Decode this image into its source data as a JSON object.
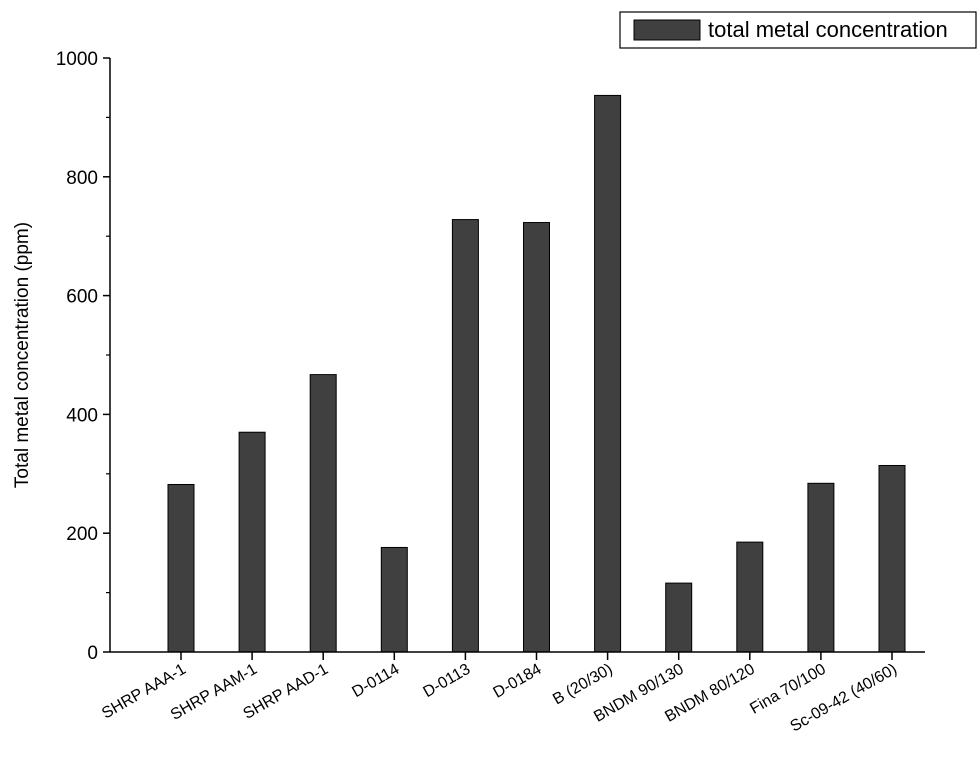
{
  "chart_data": {
    "type": "bar",
    "title": "",
    "xlabel": "",
    "ylabel": "Total metal concentration (ppm)",
    "ylim": [
      0,
      1000
    ],
    "yticks": [
      0,
      200,
      400,
      600,
      800,
      1000
    ],
    "grid": false,
    "legend_position": "top-right",
    "categories": [
      "SHRP AAA-1",
      "SHRP AAM-1",
      "SHRP AAD-1",
      "D-0114",
      "D-0113",
      "D-0184",
      "B (20/30)",
      "BNDM 90/130",
      "BNDM 80/120",
      "Fina 70/100",
      "Sc-09-42 (40/60)"
    ],
    "series": [
      {
        "name": "total metal concentration",
        "color": "#404040",
        "values": [
          282,
          370,
          467,
          176,
          728,
          723,
          937,
          116,
          185,
          284,
          314
        ]
      }
    ]
  }
}
